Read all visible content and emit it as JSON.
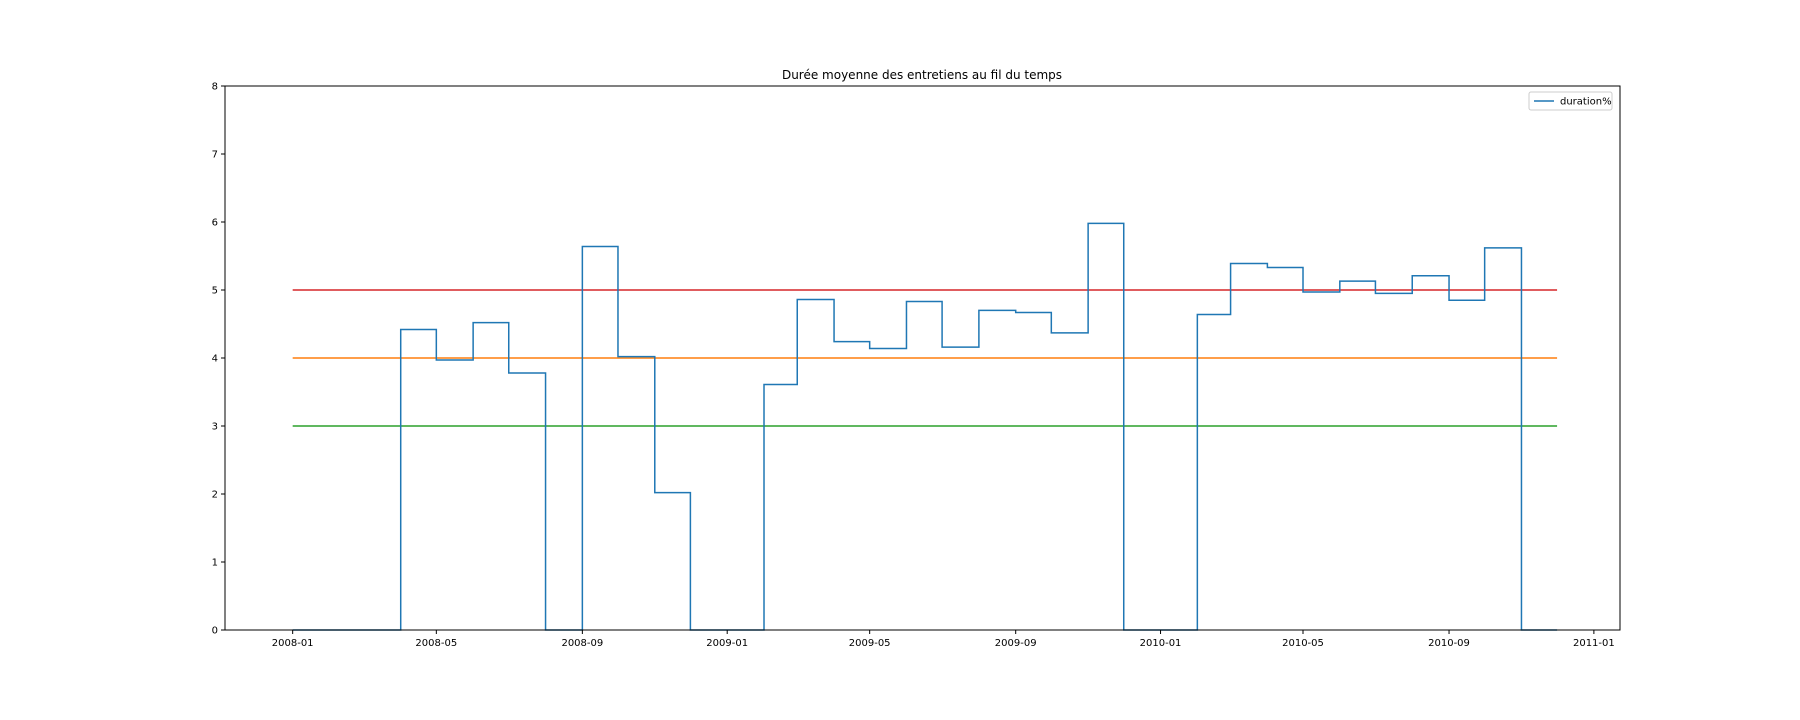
{
  "chart_data": {
    "type": "line",
    "step": "post",
    "title": "Durée moyenne des entretiens au fil du temps",
    "xlabel": "",
    "ylabel": "",
    "xlim": [
      "2007-11-05",
      "2011-01-23"
    ],
    "ylim": [
      0,
      8
    ],
    "yticks": [
      0,
      1,
      2,
      3,
      4,
      5,
      6,
      7,
      8
    ],
    "xticks": [
      "2008-01",
      "2008-05",
      "2008-09",
      "2009-01",
      "2009-05",
      "2009-09",
      "2010-01",
      "2010-05",
      "2010-09",
      "2011-01"
    ],
    "legend": {
      "location": "upper right",
      "entries": [
        "duration%"
      ]
    },
    "grid": false,
    "series": [
      {
        "name": "duration%",
        "color": "#1f77b4",
        "x": [
          "2008-01-01",
          "2008-02-01",
          "2008-03-01",
          "2008-04-01",
          "2008-05-01",
          "2008-06-01",
          "2008-07-01",
          "2008-08-01",
          "2008-09-01",
          "2008-10-01",
          "2008-11-01",
          "2008-12-01",
          "2009-01-01",
          "2009-02-01",
          "2009-03-01",
          "2009-04-01",
          "2009-05-01",
          "2009-06-01",
          "2009-07-01",
          "2009-08-01",
          "2009-09-01",
          "2009-10-01",
          "2009-11-01",
          "2009-12-01",
          "2010-01-01",
          "2010-02-01",
          "2010-03-01",
          "2010-04-01",
          "2010-05-01",
          "2010-06-01",
          "2010-07-01",
          "2010-08-01",
          "2010-09-01",
          "2010-10-01",
          "2010-11-01",
          "2010-12-01"
        ],
        "values": [
          0,
          0,
          0,
          4.42,
          3.97,
          4.52,
          3.78,
          0,
          5.64,
          4.02,
          2.02,
          0,
          0,
          3.61,
          4.86,
          4.24,
          4.14,
          4.83,
          4.16,
          4.7,
          4.67,
          4.37,
          5.98,
          0,
          0,
          4.64,
          5.39,
          5.33,
          4.97,
          5.13,
          4.95,
          5.21,
          4.85,
          5.62,
          0,
          0
        ]
      }
    ],
    "hlines": [
      {
        "y": 5,
        "color": "#d62728",
        "xmin": "2008-01-01",
        "xmax": "2010-12-01"
      },
      {
        "y": 4,
        "color": "#ff7f0e",
        "xmin": "2008-01-01",
        "xmax": "2010-12-01"
      },
      {
        "y": 3,
        "color": "#2ca02c",
        "xmin": "2008-01-01",
        "xmax": "2010-12-01"
      }
    ]
  }
}
